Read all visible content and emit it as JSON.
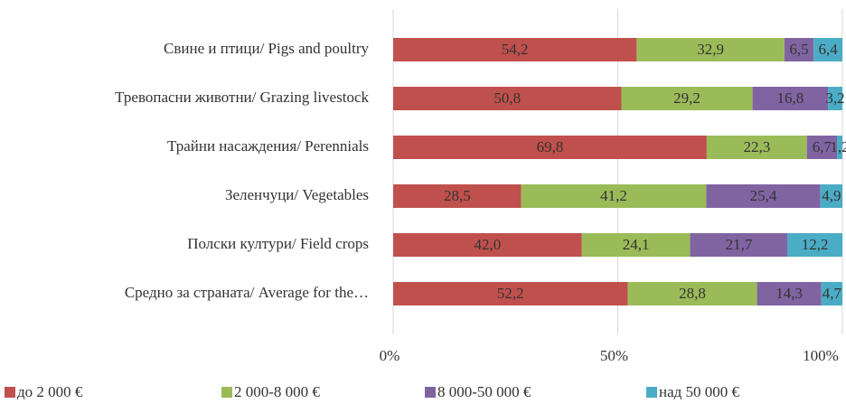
{
  "chart_data": {
    "type": "stacked-bar-horizontal",
    "categories": [
      "Свине и птици/ Pigs and poultry",
      "Тревопасни животни/ Grazing livestock",
      "Трайни насаждения/ Perennials",
      "Зеленчуци/ Vegetables",
      "Полски култури/ Field crops",
      "Средно за страната/ Average for the…"
    ],
    "series": [
      {
        "name": "до 2 000 €",
        "color": "#c0504d",
        "values": [
          54.2,
          50.8,
          69.8,
          28.5,
          42.0,
          52.2
        ],
        "value_labels": [
          "54,2",
          "50,8",
          "69,8",
          "28,5",
          "42,0",
          "52,2"
        ]
      },
      {
        "name": "2 000-8 000 €",
        "color": "#9bbb59",
        "values": [
          32.9,
          29.2,
          22.3,
          41.2,
          24.1,
          28.8
        ],
        "value_labels": [
          "32,9",
          "29,2",
          "22,3",
          "41,2",
          "24,1",
          "28,8"
        ]
      },
      {
        "name": "8 000-50 000 €",
        "color": "#8064a2",
        "values": [
          6.5,
          16.8,
          6.7,
          25.4,
          21.7,
          14.3
        ],
        "value_labels": [
          "6,5",
          "16,8",
          "6,7",
          "25,4",
          "21,7",
          "14,3"
        ]
      },
      {
        "name": "над 50 000 €",
        "color": "#4bacc6",
        "values": [
          6.4,
          3.2,
          1.2,
          4.9,
          12.2,
          4.7
        ],
        "value_labels": [
          "6,4",
          "3,2",
          "1,2",
          "4,9",
          "12,2",
          "4,7"
        ]
      }
    ],
    "xlim": [
      0,
      100
    ],
    "xticks": [
      {
        "value": 0,
        "label": "0%"
      },
      {
        "value": 50,
        "label": "50%"
      },
      {
        "value": 100,
        "label": "100%"
      }
    ],
    "grid": true,
    "legend": "bottom"
  }
}
